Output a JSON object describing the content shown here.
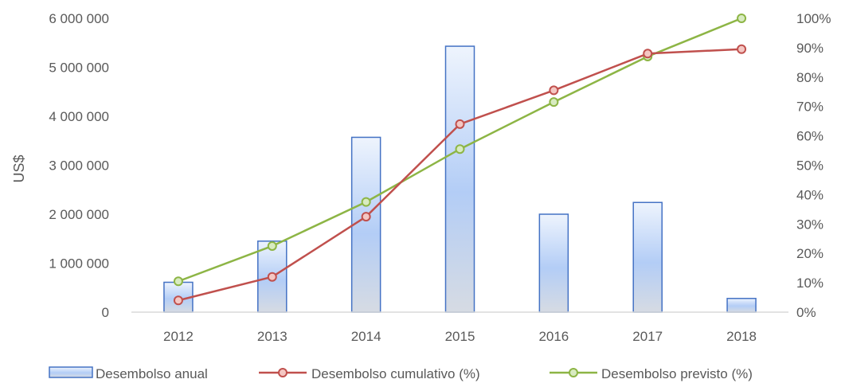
{
  "chart_data": {
    "type": "bar",
    "categories": [
      "2012",
      "2013",
      "2014",
      "2015",
      "2016",
      "2017",
      "2018"
    ],
    "ylabel": "US$",
    "ylim": [
      0,
      6000000
    ],
    "y2lim": [
      0,
      1
    ],
    "y_ticks": [
      "0",
      "1 000 000",
      "2 000 000",
      "3 000 000",
      "4 000 000",
      "5 000 000",
      "6 000 000"
    ],
    "y2_ticks": [
      "0%",
      "10%",
      "20%",
      "30%",
      "40%",
      "50%",
      "60%",
      "70%",
      "80%",
      "90%",
      "100%"
    ],
    "grid": false,
    "legend_position": "bottom",
    "series": [
      {
        "name": "Desembolso anual",
        "type": "bar",
        "axis": "left",
        "color": "#4472C4",
        "values": [
          610000,
          1450000,
          3570000,
          5430000,
          2000000,
          2240000,
          280000
        ]
      },
      {
        "name": "Desembolso cumulativo (%)",
        "type": "line",
        "axis": "right",
        "color": "#C0504D",
        "values": [
          0.04,
          0.12,
          0.325,
          0.64,
          0.755,
          0.88,
          0.895
        ]
      },
      {
        "name": "Desembolso previsto (%)",
        "type": "line",
        "axis": "right",
        "color": "#8DB545",
        "values": [
          0.105,
          0.225,
          0.375,
          0.555,
          0.715,
          0.87,
          1.0
        ]
      }
    ]
  }
}
